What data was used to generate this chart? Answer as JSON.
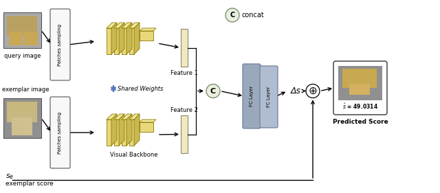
{
  "bg_color": "#ffffff",
  "concat_label": "concat",
  "shared_weights_label": "Shared Weights",
  "visual_backbone_label": "Visual Backbone",
  "query_image_label": "query image",
  "exemplar_image_label": "exemplar image",
  "exemplar_score_label": "exemplar score",
  "patches_sampling_label": "Patches sampling",
  "feature1_label": "Feature 1",
  "feature2_label": "Feature 2",
  "fc_layer1_label": "FC Layer",
  "fc_layer2_label": "FC Layer",
  "delta_s_label": "Δs",
  "predicted_score_label": "Predicted Score",
  "score_text": "$\\hat{s}$ = 49.0314",
  "se_label": "$s_e$",
  "cnn_face_color": "#e8d87a",
  "cnn_top_color": "#f0e898",
  "cnn_side_color": "#c8b850",
  "cnn_edge_color": "#8a7800",
  "feat_face_color": "#f0e8c0",
  "feat_edge_color": "#888870",
  "fc1_color": "#9aa8bc",
  "fc2_color": "#b0bcd0",
  "fc_edge_color": "#7080a0",
  "concat_fill": "#e8f0e0",
  "concat_edge": "#809070",
  "plus_fill": "#ffffff",
  "ps_fill": "#f8f8f8",
  "ps_edge": "#555555",
  "arrow_color": "#000000",
  "shared_arrow_color": "#5577bb",
  "out_edge": "#555555"
}
